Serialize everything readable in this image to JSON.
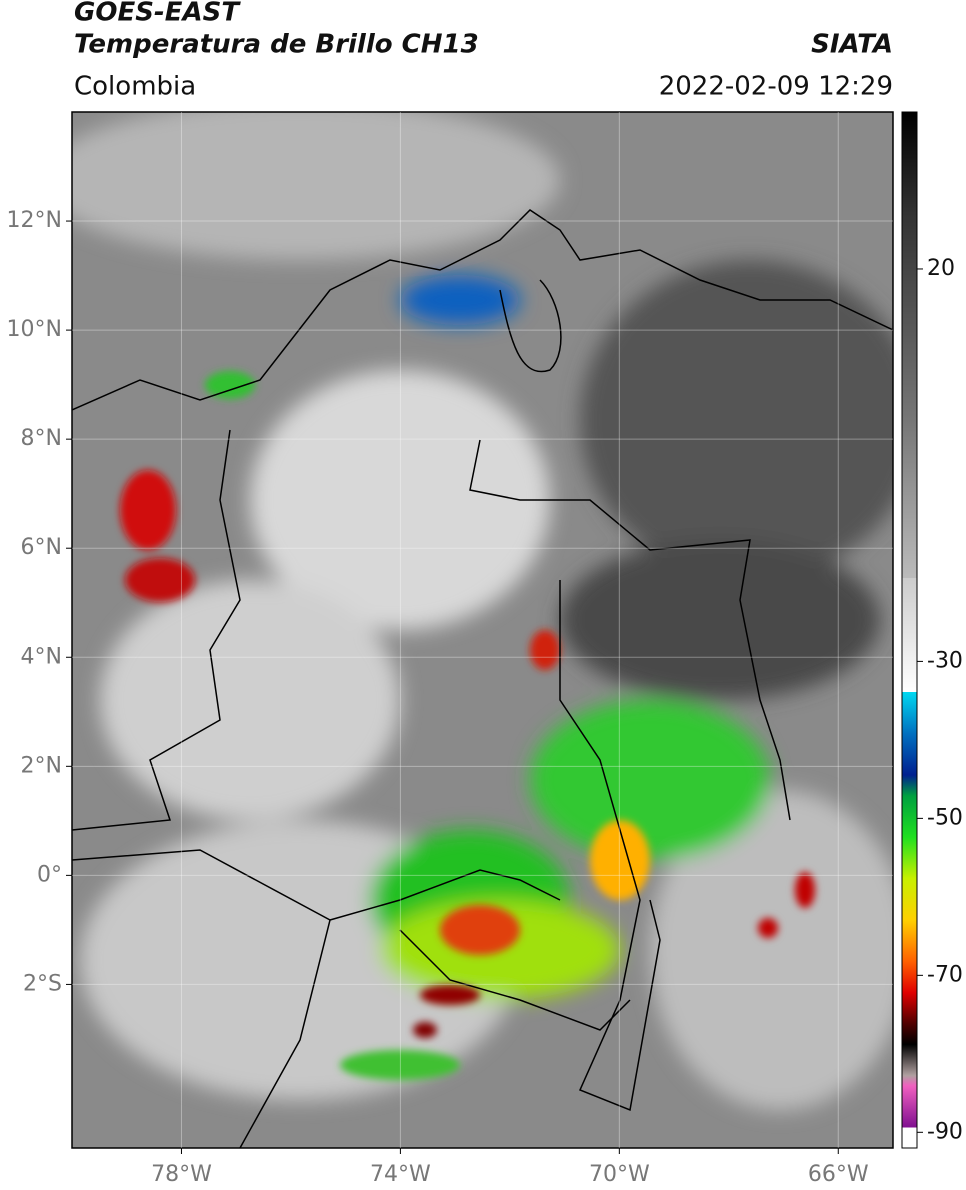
{
  "header": {
    "line1": "GOES-EAST",
    "line2": "Temperatura de Brillo CH13",
    "source": "SIATA",
    "region": "Colombia",
    "datetime": "2022-02-09 12:29"
  },
  "map": {
    "xlim": [
      -80,
      -65
    ],
    "ylim": [
      -5,
      14
    ],
    "xticks": [
      {
        "value": -78,
        "label": "78°W"
      },
      {
        "value": -74,
        "label": "74°W"
      },
      {
        "value": -70,
        "label": "70°W"
      },
      {
        "value": -66,
        "label": "66°W"
      }
    ],
    "yticks": [
      {
        "value": 12,
        "label": "12°N"
      },
      {
        "value": 10,
        "label": "10°N"
      },
      {
        "value": 8,
        "label": "8°N"
      },
      {
        "value": 6,
        "label": "6°N"
      },
      {
        "value": 4,
        "label": "4°N"
      },
      {
        "value": 2,
        "label": "2°N"
      },
      {
        "value": 0,
        "label": "0°"
      },
      {
        "value": -2,
        "label": "2°S"
      }
    ],
    "grid": true
  },
  "colorbar": {
    "lim": [
      -92,
      40
    ],
    "ticks": [
      20,
      -30,
      -50,
      -70,
      -90
    ]
  }
}
